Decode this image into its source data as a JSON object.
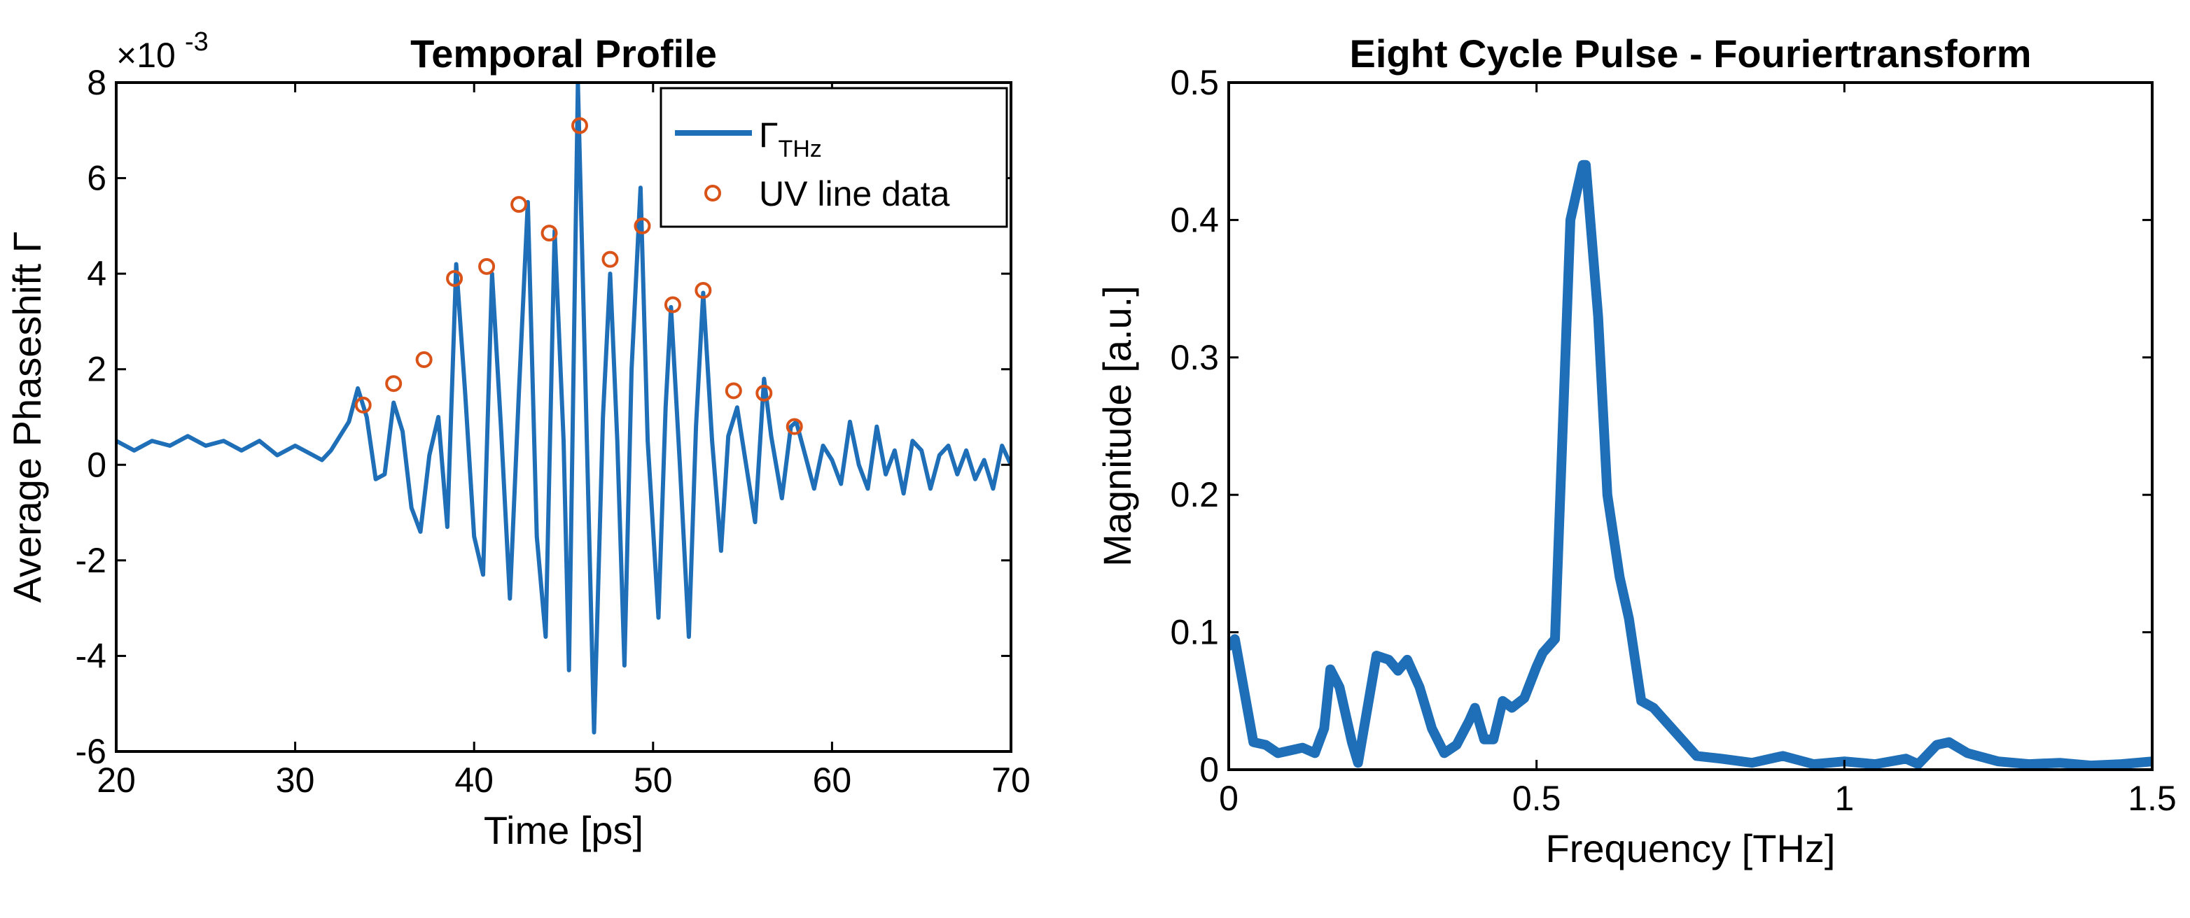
{
  "chart_data": [
    {
      "type": "line",
      "title": "Temporal Profile",
      "xlabel": "Time [ps]",
      "ylabel": "Average Phaseshift Γ",
      "y_exponent_label": "×10",
      "y_exponent_power": "-3",
      "y_scale": 0.001,
      "xlim": [
        20,
        70
      ],
      "ylim": [
        -6,
        8
      ],
      "xticks": [
        20,
        30,
        40,
        50,
        60,
        70
      ],
      "yticks": [
        -6,
        -4,
        -2,
        0,
        2,
        4,
        6,
        8
      ],
      "grid": false,
      "legend_position": "top-right",
      "legend": [
        {
          "symbol": "line",
          "label_main": "Γ",
          "label_sub": "THz"
        },
        {
          "symbol": "circle",
          "label_main": "UV line data",
          "label_sub": ""
        }
      ],
      "colors": {
        "line": "#1f6fb8",
        "markers": "#d95319"
      },
      "series": [
        {
          "name": "Γ THz",
          "kind": "line",
          "points": [
            [
              20,
              0.5
            ],
            [
              21,
              0.3
            ],
            [
              22,
              0.5
            ],
            [
              23,
              0.4
            ],
            [
              24,
              0.6
            ],
            [
              25,
              0.4
            ],
            [
              26,
              0.5
            ],
            [
              27,
              0.3
            ],
            [
              28,
              0.5
            ],
            [
              29,
              0.2
            ],
            [
              30,
              0.4
            ],
            [
              31,
              0.2
            ],
            [
              31.5,
              0.1
            ],
            [
              32,
              0.3
            ],
            [
              32.5,
              0.6
            ],
            [
              33,
              0.9
            ],
            [
              33.5,
              1.6
            ],
            [
              34,
              1.0
            ],
            [
              34.5,
              -0.3
            ],
            [
              35,
              -0.2
            ],
            [
              35.5,
              1.3
            ],
            [
              36,
              0.7
            ],
            [
              36.5,
              -0.9
            ],
            [
              37,
              -1.4
            ],
            [
              37.5,
              0.2
            ],
            [
              38,
              1.0
            ],
            [
              38.5,
              -1.3
            ],
            [
              39,
              4.2
            ],
            [
              39.5,
              1.5
            ],
            [
              40,
              -1.5
            ],
            [
              40.5,
              -2.3
            ],
            [
              41,
              4.0
            ],
            [
              41.5,
              0.8
            ],
            [
              42,
              -2.8
            ],
            [
              42.5,
              1.5
            ],
            [
              43,
              5.5
            ],
            [
              43.5,
              -1.5
            ],
            [
              44,
              -3.6
            ],
            [
              44.5,
              4.9
            ],
            [
              45,
              0.5
            ],
            [
              45.3,
              -4.3
            ],
            [
              45.8,
              8.0
            ],
            [
              46.2,
              2.0
            ],
            [
              46.7,
              -5.6
            ],
            [
              47.2,
              1.0
            ],
            [
              47.6,
              4.0
            ],
            [
              48.0,
              0.5
            ],
            [
              48.4,
              -4.2
            ],
            [
              48.8,
              2.0
            ],
            [
              49.3,
              5.8
            ],
            [
              49.7,
              0.5
            ],
            [
              50.3,
              -3.2
            ],
            [
              50.7,
              1.2
            ],
            [
              51.0,
              3.3
            ],
            [
              51.5,
              0.0
            ],
            [
              52.0,
              -3.6
            ],
            [
              52.4,
              0.8
            ],
            [
              52.8,
              3.6
            ],
            [
              53.3,
              0.5
            ],
            [
              53.8,
              -1.8
            ],
            [
              54.2,
              0.6
            ],
            [
              54.7,
              1.2
            ],
            [
              55.2,
              0.0
            ],
            [
              55.7,
              -1.2
            ],
            [
              56.2,
              1.8
            ],
            [
              56.6,
              0.6
            ],
            [
              57.2,
              -0.7
            ],
            [
              57.7,
              0.8
            ],
            [
              58.0,
              0.9
            ],
            [
              58.5,
              0.2
            ],
            [
              59,
              -0.5
            ],
            [
              59.5,
              0.4
            ],
            [
              60,
              0.1
            ],
            [
              60.5,
              -0.4
            ],
            [
              61,
              0.9
            ],
            [
              61.5,
              0.0
            ],
            [
              62,
              -0.5
            ],
            [
              62.5,
              0.8
            ],
            [
              63,
              -0.2
            ],
            [
              63.5,
              0.3
            ],
            [
              64,
              -0.6
            ],
            [
              64.5,
              0.5
            ],
            [
              65,
              0.3
            ],
            [
              65.5,
              -0.5
            ],
            [
              66,
              0.2
            ],
            [
              66.5,
              0.4
            ],
            [
              67,
              -0.2
            ],
            [
              67.5,
              0.3
            ],
            [
              68,
              -0.3
            ],
            [
              68.5,
              0.1
            ],
            [
              69,
              -0.5
            ],
            [
              69.5,
              0.4
            ],
            [
              70,
              0.0
            ]
          ]
        },
        {
          "name": "UV line data",
          "kind": "markers",
          "points": [
            [
              33.8,
              1.25
            ],
            [
              35.5,
              1.7
            ],
            [
              37.2,
              2.2
            ],
            [
              38.9,
              3.9
            ],
            [
              40.7,
              4.15
            ],
            [
              42.5,
              5.45
            ],
            [
              44.2,
              4.85
            ],
            [
              45.9,
              7.1
            ],
            [
              47.6,
              4.3
            ],
            [
              49.4,
              5.0
            ],
            [
              51.1,
              3.35
            ],
            [
              52.8,
              3.65
            ],
            [
              54.5,
              1.55
            ],
            [
              56.2,
              1.5
            ],
            [
              57.9,
              0.8
            ]
          ]
        }
      ]
    },
    {
      "type": "line",
      "title": "Eight Cycle Pulse - Fouriertransform",
      "xlabel": "Frequency [THz]",
      "ylabel": "Magnitude [a.u.]",
      "xlim": [
        0,
        1.5
      ],
      "ylim": [
        0,
        0.5
      ],
      "xticks": [
        0,
        0.5,
        1,
        1.5
      ],
      "yticks": [
        0,
        0.1,
        0.2,
        0.3,
        0.4,
        0.5
      ],
      "grid": false,
      "colors": {
        "line": "#1f6fb8"
      },
      "series": [
        {
          "name": "",
          "kind": "line",
          "points": [
            [
              0,
              0.09
            ],
            [
              0.01,
              0.095
            ],
            [
              0.02,
              0.07
            ],
            [
              0.04,
              0.02
            ],
            [
              0.06,
              0.018
            ],
            [
              0.08,
              0.012
            ],
            [
              0.1,
              0.014
            ],
            [
              0.12,
              0.016
            ],
            [
              0.14,
              0.012
            ],
            [
              0.155,
              0.03
            ],
            [
              0.165,
              0.073
            ],
            [
              0.18,
              0.06
            ],
            [
              0.2,
              0.02
            ],
            [
              0.21,
              0.005
            ],
            [
              0.24,
              0.083
            ],
            [
              0.26,
              0.08
            ],
            [
              0.275,
              0.072
            ],
            [
              0.29,
              0.08
            ],
            [
              0.31,
              0.06
            ],
            [
              0.33,
              0.03
            ],
            [
              0.35,
              0.012
            ],
            [
              0.37,
              0.018
            ],
            [
              0.39,
              0.035
            ],
            [
              0.4,
              0.045
            ],
            [
              0.415,
              0.022
            ],
            [
              0.43,
              0.022
            ],
            [
              0.445,
              0.05
            ],
            [
              0.46,
              0.045
            ],
            [
              0.48,
              0.052
            ],
            [
              0.5,
              0.075
            ],
            [
              0.51,
              0.085
            ],
            [
              0.53,
              0.095
            ],
            [
              0.555,
              0.4
            ],
            [
              0.575,
              0.44
            ],
            [
              0.58,
              0.44
            ],
            [
              0.6,
              0.33
            ],
            [
              0.615,
              0.2
            ],
            [
              0.635,
              0.14
            ],
            [
              0.65,
              0.11
            ],
            [
              0.67,
              0.05
            ],
            [
              0.69,
              0.045
            ],
            [
              0.7,
              0.04
            ],
            [
              0.72,
              0.03
            ],
            [
              0.74,
              0.02
            ],
            [
              0.76,
              0.01
            ],
            [
              0.8,
              0.008
            ],
            [
              0.85,
              0.005
            ],
            [
              0.9,
              0.01
            ],
            [
              0.95,
              0.004
            ],
            [
              1.0,
              0.006
            ],
            [
              1.05,
              0.004
            ],
            [
              1.1,
              0.008
            ],
            [
              1.12,
              0.004
            ],
            [
              1.15,
              0.018
            ],
            [
              1.17,
              0.02
            ],
            [
              1.2,
              0.012
            ],
            [
              1.25,
              0.006
            ],
            [
              1.3,
              0.004
            ],
            [
              1.35,
              0.005
            ],
            [
              1.4,
              0.003
            ],
            [
              1.45,
              0.004
            ],
            [
              1.5,
              0.006
            ]
          ]
        }
      ]
    }
  ]
}
